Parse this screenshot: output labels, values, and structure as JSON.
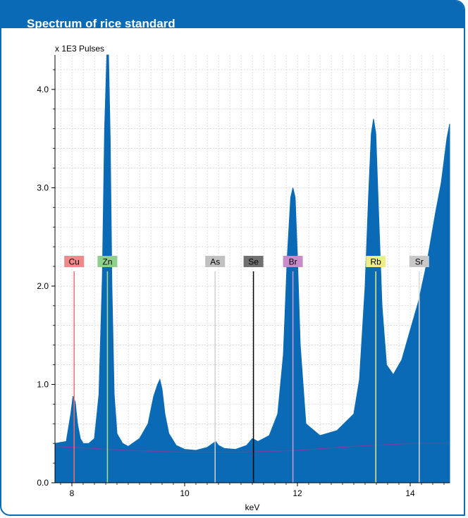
{
  "header": {
    "title": "Spectrum of rice standard"
  },
  "chart_data": {
    "type": "area",
    "title": "",
    "ylabel_prefix": "x 1E3 Pulses",
    "xlabel": "keV",
    "xlim": [
      7.7,
      14.7
    ],
    "ylim": [
      0,
      4.35
    ],
    "xticks": [
      8,
      10,
      12,
      14
    ],
    "yticks": [
      0.0,
      1.0,
      2.0,
      3.0,
      4.0
    ],
    "ytick_labels": [
      "0.0",
      "1.0",
      "2.0",
      "3.0",
      "4.0"
    ],
    "grid": true,
    "fill_color": "#0a6ab5",
    "background_curve_color": "#7b3fa0",
    "spectrum": {
      "x": [
        7.7,
        7.9,
        7.98,
        8.02,
        8.06,
        8.1,
        8.15,
        8.2,
        8.3,
        8.4,
        8.48,
        8.54,
        8.58,
        8.62,
        8.65,
        8.68,
        8.71,
        8.75,
        8.8,
        8.9,
        9.0,
        9.2,
        9.35,
        9.45,
        9.52,
        9.56,
        9.6,
        9.65,
        9.72,
        9.85,
        10.0,
        10.2,
        10.4,
        10.5,
        10.55,
        10.6,
        10.7,
        10.9,
        11.1,
        11.2,
        11.3,
        11.5,
        11.65,
        11.75,
        11.82,
        11.88,
        11.92,
        11.96,
        12.0,
        12.05,
        12.15,
        12.4,
        12.7,
        13.0,
        13.1,
        13.2,
        13.26,
        13.31,
        13.35,
        13.39,
        13.43,
        13.5,
        13.58,
        13.7,
        13.85,
        14.0,
        14.15,
        14.3,
        14.45,
        14.55,
        14.65,
        14.7
      ],
      "y": [
        0.4,
        0.42,
        0.7,
        0.88,
        0.82,
        0.6,
        0.45,
        0.4,
        0.4,
        0.45,
        0.9,
        2.1,
        3.6,
        4.4,
        4.4,
        3.5,
        2.0,
        0.9,
        0.5,
        0.4,
        0.37,
        0.45,
        0.6,
        0.88,
        1.0,
        1.05,
        0.95,
        0.7,
        0.5,
        0.38,
        0.34,
        0.33,
        0.36,
        0.4,
        0.42,
        0.38,
        0.35,
        0.34,
        0.38,
        0.45,
        0.42,
        0.48,
        0.7,
        1.3,
        2.3,
        2.9,
        3.0,
        2.9,
        2.3,
        1.4,
        0.6,
        0.48,
        0.53,
        0.7,
        1.05,
        2.0,
        2.9,
        3.55,
        3.7,
        3.55,
        2.9,
        1.8,
        1.2,
        1.1,
        1.25,
        1.55,
        1.85,
        2.25,
        2.75,
        3.05,
        3.5,
        3.65
      ]
    },
    "background_curve": {
      "x": [
        7.7,
        9.0,
        10.0,
        11.0,
        12.0,
        13.0,
        14.0,
        14.7
      ],
      "y": [
        0.37,
        0.33,
        0.31,
        0.31,
        0.33,
        0.37,
        0.4,
        0.4
      ]
    },
    "element_markers": [
      {
        "label": "Cu",
        "energy": 8.04,
        "box_color": "#f08a8a",
        "line_color": "#f26d6d"
      },
      {
        "label": "Zn",
        "energy": 8.63,
        "box_color": "#8fd08f",
        "line_color": "#a8e08a"
      },
      {
        "label": "As",
        "energy": 10.54,
        "box_color": "#c0c0c0",
        "line_color": "#d0d0d0"
      },
      {
        "label": "Se",
        "energy": 11.22,
        "box_color": "#707070",
        "line_color": "#000000"
      },
      {
        "label": "Br",
        "energy": 11.92,
        "box_color": "#c98bc9",
        "line_color": "#d29ad2"
      },
      {
        "label": "Rb",
        "energy": 13.39,
        "box_color": "#eeee88",
        "line_color": "#e6e67a"
      },
      {
        "label": "Sr",
        "energy": 14.16,
        "box_color": "#c8c8c8",
        "line_color": "#d8d8d8"
      }
    ],
    "marker_label_level": 2.25,
    "marker_line_top": 2.15
  }
}
